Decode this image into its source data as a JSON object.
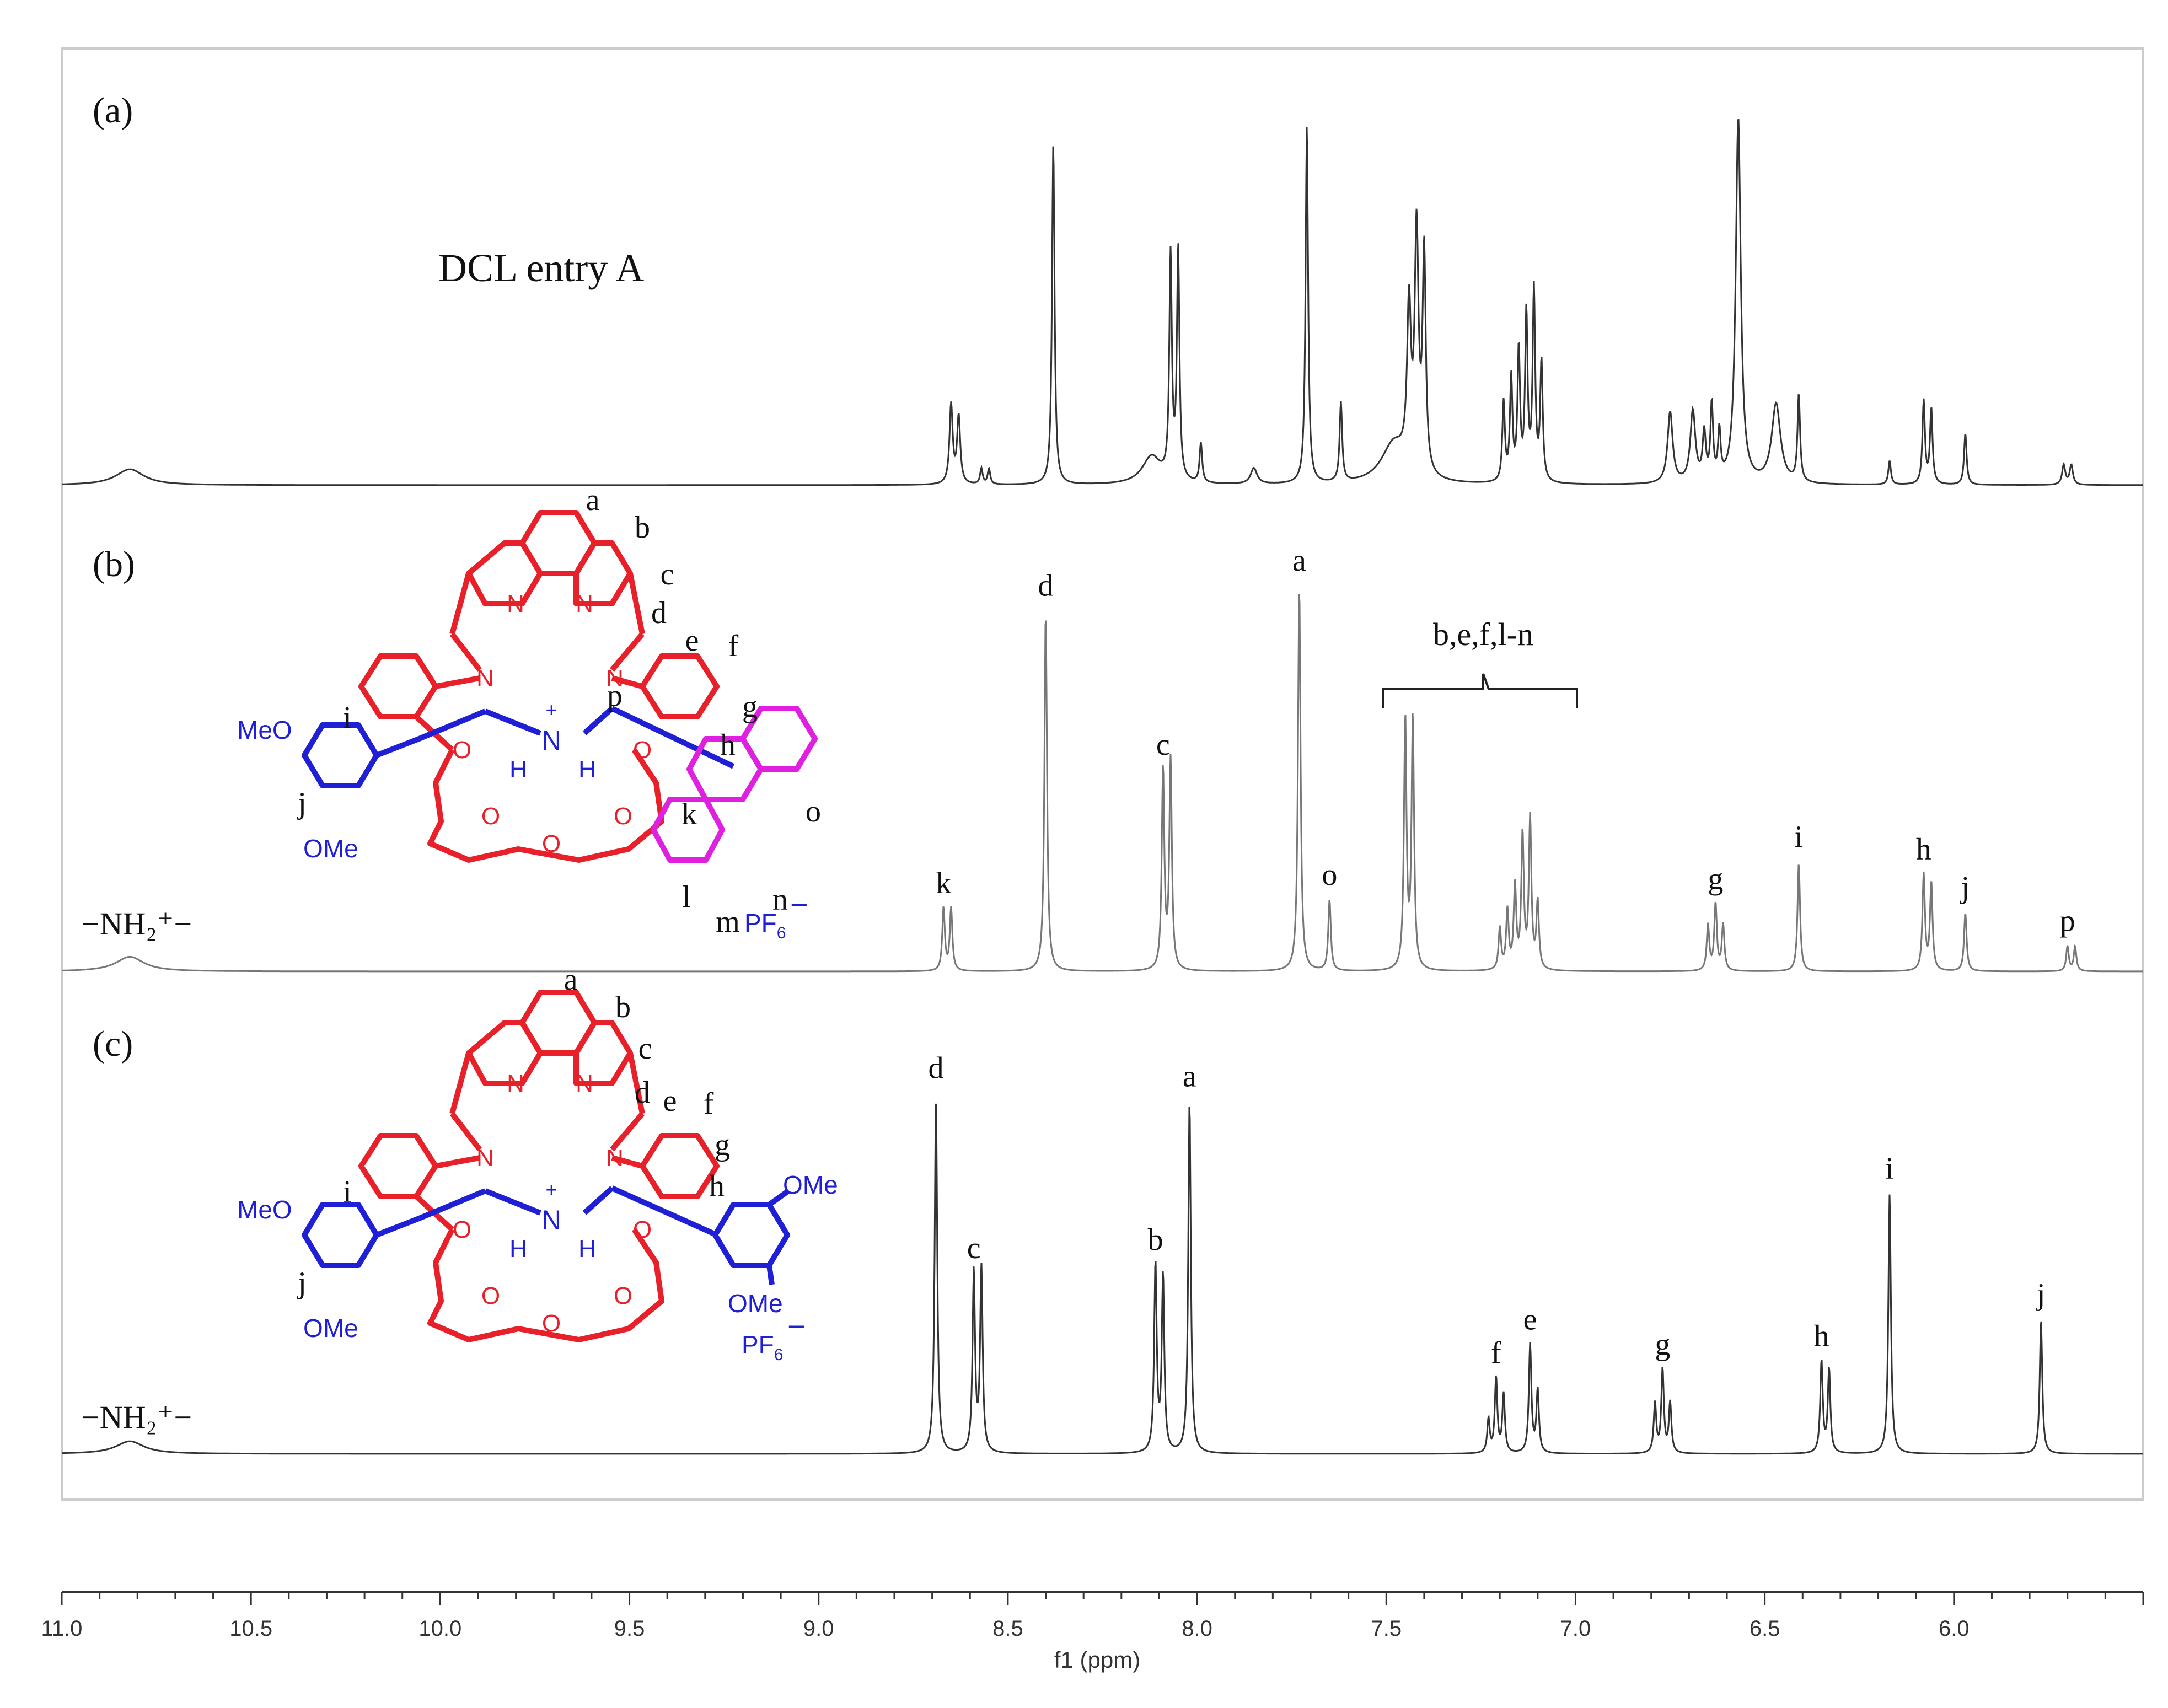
{
  "chart_data": {
    "type": "line",
    "title": "",
    "xlabel": "f1 (ppm)",
    "ylabel": "",
    "xlim": [
      11.0,
      5.5
    ],
    "x_ticks": [
      "11.0",
      "10.5",
      "10.0",
      "9.5",
      "9.0",
      "8.5",
      "8.0",
      "7.5",
      "7.0",
      "6.5",
      "6.0"
    ],
    "x_tick_values": [
      11.0,
      10.5,
      10.0,
      9.5,
      9.0,
      8.5,
      8.0,
      7.5,
      7.0,
      6.5,
      6.0
    ],
    "panels": [
      {
        "id": "a",
        "panel_label": "(a)",
        "caption": "DCL entry A",
        "color": "#333333",
        "peaks": [
          {
            "ppm": 10.82,
            "height": 0.04,
            "width": 0.045,
            "label": ""
          },
          {
            "ppm": 8.65,
            "height": 0.2,
            "width": 0.005,
            "label": ""
          },
          {
            "ppm": 8.63,
            "height": 0.17,
            "width": 0.005,
            "label": ""
          },
          {
            "ppm": 8.57,
            "height": 0.04,
            "width": 0.004,
            "label": ""
          },
          {
            "ppm": 8.55,
            "height": 0.04,
            "width": 0.004,
            "label": ""
          },
          {
            "ppm": 8.38,
            "height": 0.86,
            "width": 0.004,
            "label": ""
          },
          {
            "ppm": 8.12,
            "height": 0.07,
            "width": 0.03,
            "label": ""
          },
          {
            "ppm": 8.07,
            "height": 0.56,
            "width": 0.004,
            "label": ""
          },
          {
            "ppm": 8.05,
            "height": 0.58,
            "width": 0.004,
            "label": ""
          },
          {
            "ppm": 7.99,
            "height": 0.1,
            "width": 0.004,
            "label": ""
          },
          {
            "ppm": 7.85,
            "height": 0.04,
            "width": 0.01,
            "label": ""
          },
          {
            "ppm": 7.71,
            "height": 0.9,
            "width": 0.004,
            "label": ""
          },
          {
            "ppm": 7.62,
            "height": 0.2,
            "width": 0.004,
            "label": ""
          },
          {
            "ppm": 7.48,
            "height": 0.1,
            "width": 0.04,
            "label": ""
          },
          {
            "ppm": 7.44,
            "height": 0.4,
            "width": 0.006,
            "label": ""
          },
          {
            "ppm": 7.42,
            "height": 0.6,
            "width": 0.006,
            "label": ""
          },
          {
            "ppm": 7.4,
            "height": 0.55,
            "width": 0.005,
            "label": ""
          },
          {
            "ppm": 7.19,
            "height": 0.2,
            "width": 0.004,
            "label": ""
          },
          {
            "ppm": 7.17,
            "height": 0.26,
            "width": 0.004,
            "label": ""
          },
          {
            "ppm": 7.15,
            "height": 0.33,
            "width": 0.004,
            "label": ""
          },
          {
            "ppm": 7.13,
            "height": 0.42,
            "width": 0.004,
            "label": ""
          },
          {
            "ppm": 7.11,
            "height": 0.48,
            "width": 0.004,
            "label": ""
          },
          {
            "ppm": 7.09,
            "height": 0.3,
            "width": 0.004,
            "label": ""
          },
          {
            "ppm": 6.75,
            "height": 0.18,
            "width": 0.008,
            "label": ""
          },
          {
            "ppm": 6.69,
            "height": 0.18,
            "width": 0.008,
            "label": ""
          },
          {
            "ppm": 6.66,
            "height": 0.12,
            "width": 0.005,
            "label": ""
          },
          {
            "ppm": 6.64,
            "height": 0.19,
            "width": 0.004,
            "label": ""
          },
          {
            "ppm": 6.62,
            "height": 0.12,
            "width": 0.004,
            "label": ""
          },
          {
            "ppm": 6.57,
            "height": 0.92,
            "width": 0.008,
            "label": ""
          },
          {
            "ppm": 6.47,
            "height": 0.2,
            "width": 0.014,
            "label": ""
          },
          {
            "ppm": 6.41,
            "height": 0.22,
            "width": 0.004,
            "label": ""
          },
          {
            "ppm": 6.17,
            "height": 0.06,
            "width": 0.004,
            "label": ""
          },
          {
            "ppm": 6.08,
            "height": 0.21,
            "width": 0.004,
            "label": ""
          },
          {
            "ppm": 6.06,
            "height": 0.19,
            "width": 0.004,
            "label": ""
          },
          {
            "ppm": 5.97,
            "height": 0.13,
            "width": 0.004,
            "label": ""
          },
          {
            "ppm": 5.71,
            "height": 0.05,
            "width": 0.005,
            "label": ""
          },
          {
            "ppm": 5.69,
            "height": 0.05,
            "width": 0.005,
            "label": ""
          }
        ]
      },
      {
        "id": "b",
        "panel_label": "(b)",
        "nh2_label": "−NH₂⁺−",
        "bracket_label": "b,e,f,l-n",
        "color": "#777777",
        "peaks": [
          {
            "ppm": 10.82,
            "height": 0.035,
            "width": 0.045,
            "label": ""
          },
          {
            "ppm": 8.67,
            "height": 0.15,
            "width": 0.004,
            "label": "k"
          },
          {
            "ppm": 8.65,
            "height": 0.15,
            "width": 0.004,
            "label": ""
          },
          {
            "ppm": 8.4,
            "height": 0.86,
            "width": 0.004,
            "label": "d"
          },
          {
            "ppm": 8.09,
            "height": 0.48,
            "width": 0.004,
            "label": "c"
          },
          {
            "ppm": 8.07,
            "height": 0.5,
            "width": 0.004,
            "label": ""
          },
          {
            "ppm": 7.73,
            "height": 0.92,
            "width": 0.004,
            "label": "a"
          },
          {
            "ppm": 7.65,
            "height": 0.17,
            "width": 0.004,
            "label": "o"
          },
          {
            "ppm": 7.45,
            "height": 0.6,
            "width": 0.004,
            "label": ""
          },
          {
            "ppm": 7.43,
            "height": 0.6,
            "width": 0.004,
            "label": ""
          },
          {
            "ppm": 7.2,
            "height": 0.1,
            "width": 0.004,
            "label": ""
          },
          {
            "ppm": 7.18,
            "height": 0.14,
            "width": 0.004,
            "label": ""
          },
          {
            "ppm": 7.16,
            "height": 0.2,
            "width": 0.004,
            "label": ""
          },
          {
            "ppm": 7.14,
            "height": 0.32,
            "width": 0.004,
            "label": ""
          },
          {
            "ppm": 7.12,
            "height": 0.36,
            "width": 0.004,
            "label": ""
          },
          {
            "ppm": 7.1,
            "height": 0.16,
            "width": 0.004,
            "label": ""
          },
          {
            "ppm": 6.65,
            "height": 0.11,
            "width": 0.004,
            "label": ""
          },
          {
            "ppm": 6.63,
            "height": 0.16,
            "width": 0.004,
            "label": "g"
          },
          {
            "ppm": 6.61,
            "height": 0.11,
            "width": 0.004,
            "label": ""
          },
          {
            "ppm": 6.41,
            "height": 0.26,
            "width": 0.004,
            "label": "i"
          },
          {
            "ppm": 6.08,
            "height": 0.23,
            "width": 0.004,
            "label": "h"
          },
          {
            "ppm": 6.06,
            "height": 0.21,
            "width": 0.004,
            "label": ""
          },
          {
            "ppm": 5.97,
            "height": 0.14,
            "width": 0.004,
            "label": "j"
          },
          {
            "ppm": 5.7,
            "height": 0.06,
            "width": 0.004,
            "label": "p"
          },
          {
            "ppm": 5.68,
            "height": 0.06,
            "width": 0.004,
            "label": ""
          }
        ]
      },
      {
        "id": "c",
        "panel_label": "(c)",
        "nh2_label": "−NH₂⁺−",
        "color": "#333333",
        "peaks": [
          {
            "ppm": 10.82,
            "height": 0.03,
            "width": 0.045,
            "label": ""
          },
          {
            "ppm": 8.69,
            "height": 0.86,
            "width": 0.004,
            "label": "d"
          },
          {
            "ppm": 8.59,
            "height": 0.43,
            "width": 0.004,
            "label": "c"
          },
          {
            "ppm": 8.57,
            "height": 0.44,
            "width": 0.004,
            "label": ""
          },
          {
            "ppm": 8.11,
            "height": 0.45,
            "width": 0.004,
            "label": "b"
          },
          {
            "ppm": 8.09,
            "height": 0.42,
            "width": 0.004,
            "label": ""
          },
          {
            "ppm": 8.02,
            "height": 0.84,
            "width": 0.004,
            "label": "a"
          },
          {
            "ppm": 7.23,
            "height": 0.08,
            "width": 0.004,
            "label": ""
          },
          {
            "ppm": 7.21,
            "height": 0.18,
            "width": 0.004,
            "label": "f"
          },
          {
            "ppm": 7.19,
            "height": 0.14,
            "width": 0.004,
            "label": ""
          },
          {
            "ppm": 7.12,
            "height": 0.26,
            "width": 0.004,
            "label": "e"
          },
          {
            "ppm": 7.1,
            "height": 0.15,
            "width": 0.004,
            "label": ""
          },
          {
            "ppm": 6.79,
            "height": 0.12,
            "width": 0.004,
            "label": ""
          },
          {
            "ppm": 6.77,
            "height": 0.2,
            "width": 0.004,
            "label": "g"
          },
          {
            "ppm": 6.75,
            "height": 0.12,
            "width": 0.004,
            "label": ""
          },
          {
            "ppm": 6.35,
            "height": 0.22,
            "width": 0.004,
            "label": "h"
          },
          {
            "ppm": 6.33,
            "height": 0.2,
            "width": 0.004,
            "label": ""
          },
          {
            "ppm": 6.17,
            "height": 0.62,
            "width": 0.004,
            "label": "i"
          },
          {
            "ppm": 5.77,
            "height": 0.32,
            "width": 0.004,
            "label": "j"
          }
        ]
      }
    ]
  },
  "structures": {
    "b": {
      "proton_labels": [
        "a",
        "b",
        "c",
        "d",
        "e",
        "f",
        "g",
        "h",
        "i",
        "j",
        "k",
        "l",
        "m",
        "n",
        "o",
        "p"
      ],
      "atoms": {
        "n_left": "N",
        "n_right": "N",
        "n_imine_left": "N",
        "n_imine_right": "N",
        "ammonium": "N",
        "h_left": "H",
        "h_right": "H",
        "plus": "+",
        "o1": "O",
        "o2": "O",
        "o3": "O",
        "o4": "O",
        "o5": "O"
      },
      "substituents": {
        "meo": "MeO",
        "ome": "OMe",
        "pf6": "PF",
        "pf6_sub": "6",
        "minus": "−"
      }
    },
    "c": {
      "proton_labels": [
        "a",
        "b",
        "c",
        "d",
        "e",
        "f",
        "g",
        "h",
        "i",
        "j"
      ],
      "atoms": {
        "n_left": "N",
        "n_right": "N",
        "n_imine_left": "N",
        "n_imine_right": "N",
        "ammonium": "N",
        "h_left": "H",
        "h_right": "H",
        "plus": "+",
        "o1": "O",
        "o2": "O",
        "o3": "O",
        "o4": "O",
        "o5": "O"
      },
      "substituents": {
        "meo": "MeO",
        "ome": "OMe",
        "ome_right_top": "OMe",
        "ome_right_bottom": "OMe",
        "pf6": "PF",
        "pf6_sub": "6",
        "minus": "−"
      }
    }
  },
  "colors": {
    "crown_red": "#e8202a",
    "thread_blue": "#1f1fd6",
    "anthracene_magenta": "#e020e0",
    "axis": "#333333",
    "frame": "#cccccc"
  }
}
